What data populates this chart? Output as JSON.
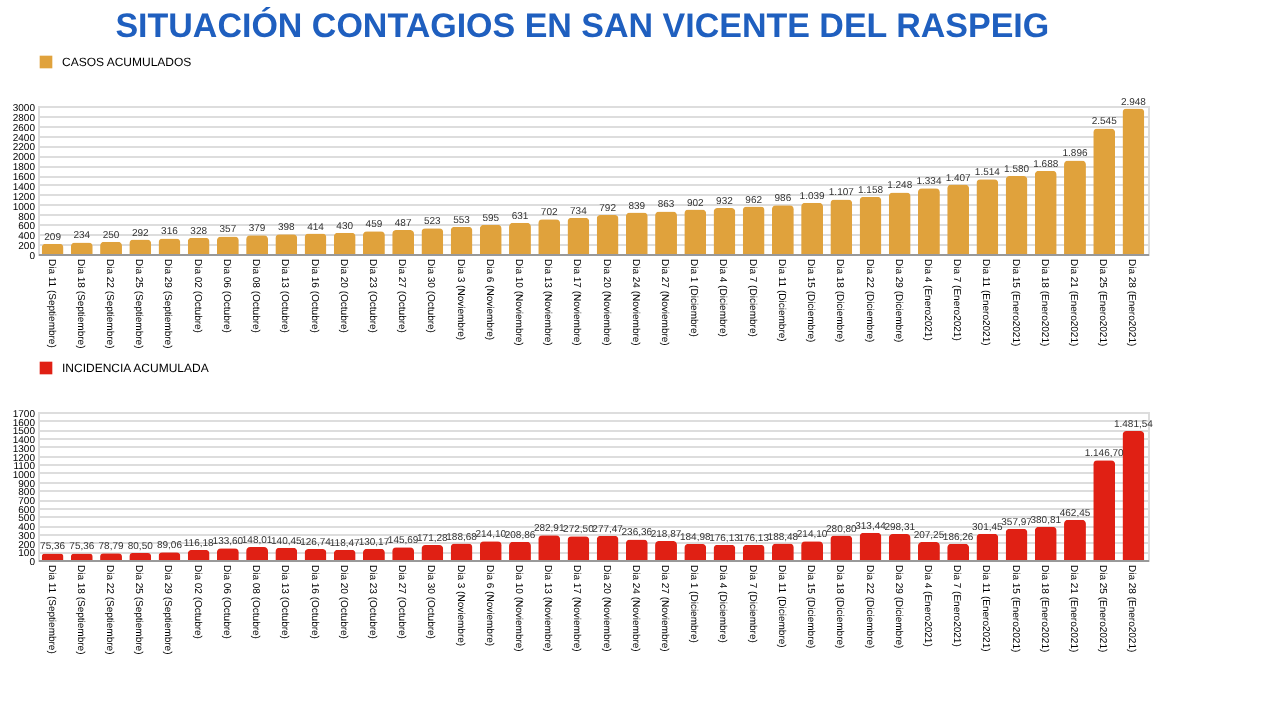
{
  "chart_data": [
    {
      "type": "bar",
      "title": "SITUACIÓN CONTAGIOS EN SAN VICENTE  DEL RASPEIG",
      "categories": [
        "Dia 11 (Septiembre)",
        "Dia 18 (Septiembre)",
        "Dia 22 (Septiembre)",
        "Dia 25 (Septiembre)",
        "Dia 29 (Septiembre)",
        "Dia 02 (Octubre)",
        "Dia 06 (Octubre)",
        "Dia 08 (Octubre)",
        "Dia 13 (Octubre)",
        "Dia 16 (Octubre)",
        "Dia 20 (Octubre)",
        "Dia 23 (Octubre)",
        "Dia 27 (Octubre)",
        "Dia 30 (Octubre)",
        "Dia 3 (Noviembre)",
        "Dia 6 (Noviembre)",
        "Dia 10 (Noviembre)",
        "Dia 13 (Noviembre)",
        "Dia 17 (Noviembre)",
        "Dia 20 (Noviembre)",
        "Dia 24 (Noviembre)",
        "Dia 27 (Noviembre)",
        "Dia 1 (Diciembre)",
        "Dia 4 (Diciembre)",
        "Dia 7 (Diciembre)",
        "Dia 11 (Diciembre)",
        "Dia 15 (Diciembre)",
        "Dia 18 (Diciembre)",
        "Dia 22 (Diciembre)",
        "Dia 29 (Diciembre)",
        "Dia 4 (Enero2021)",
        "Dia 7 (Enero2021)",
        "Dia 11 (Enero2021)",
        "Dia 15 (Enero2021)",
        "Dia 18 (Enero2021)",
        "Dia 21 (Enero2021)",
        "Dia 25 (Enero2021)",
        "Dia 28 (Enero2021)"
      ],
      "series": [
        {
          "name": "CASOS ACUMULADOS",
          "color": "#e0a23c",
          "values": [
            209,
            234,
            250,
            292,
            316,
            328,
            357,
            379,
            398,
            414,
            430,
            459,
            487,
            523,
            553,
            595,
            631,
            702,
            734,
            792,
            839,
            863,
            902,
            932,
            962,
            986,
            1039,
            1107,
            1158,
            1248,
            1334,
            1407,
            1514,
            1580,
            1688,
            1896,
            2545,
            2948
          ],
          "value_labels": [
            "209",
            "234",
            "250",
            "292",
            "316",
            "328",
            "357",
            "379",
            "398",
            "414",
            "430",
            "459",
            "487",
            "523",
            "553",
            "595",
            "631",
            "702",
            "734",
            "792",
            "839",
            "863",
            "902",
            "932",
            "962",
            "986",
            "1.039",
            "1.107",
            "1.158",
            "1.248",
            "1.334",
            "1.407",
            "1.514",
            "1.580",
            "1.688",
            "1.896",
            "2.545",
            "2.948"
          ]
        }
      ],
      "ylim": [
        0,
        3000
      ],
      "yticks": [
        0,
        200,
        400,
        600,
        800,
        1000,
        1200,
        1400,
        1600,
        1800,
        2000,
        2200,
        2400,
        2600,
        2800,
        3000
      ],
      "grid": "y",
      "legend": "top"
    },
    {
      "type": "bar",
      "categories": [
        "Dia 11 (Septiembre)",
        "Dia 18 (Septiembre)",
        "Dia 22 (Septiembre)",
        "Dia 25 (Septiembre)",
        "Dia 29 (Septiembre)",
        "Dia 02 (Octubre)",
        "Dia 06 (Octubre)",
        "Dia 08 (Octubre)",
        "Dia 13 (Octubre)",
        "Dia 16 (Octubre)",
        "Dia 20 (Octubre)",
        "Dia 23 (Octubre)",
        "Dia 27 (Octubre)",
        "Dia 30 (Octubre)",
        "Dia 3 (Noviembre)",
        "Dia 6 (Noviembre)",
        "Dia 10 (Noviembre)",
        "Dia 13 (Noviembre)",
        "Dia 17 (Noviembre)",
        "Dia 20 (Noviembre)",
        "Dia 24 (Noviembre)",
        "Dia 27 (Noviembre)",
        "Dia 1 (Diciembre)",
        "Dia 4 (Diciembre)",
        "Dia 7 (Diciembre)",
        "Dia 11 (Diciembre)",
        "Dia 15 (Diciembre)",
        "Dia 18 (Diciembre)",
        "Dia 22 (Diciembre)",
        "Dia 29 (Diciembre)",
        "Dia 4 (Enero2021)",
        "Dia 7 (Enero2021)",
        "Dia 11 (Enero2021)",
        "Dia 15 (Enero2021)",
        "Dia 18 (Enero2021)",
        "Dia 21 (Enero2021)",
        "Dia 25 (Enero2021)",
        "Dia 28 (Enero2021)"
      ],
      "series": [
        {
          "name": "INCIDENCIA ACUMULADA",
          "color": "#e02014",
          "values": [
            75.36,
            75.36,
            78.79,
            80.5,
            89.06,
            116.18,
            133.6,
            148.01,
            140.45,
            126.74,
            118.47,
            130.17,
            145.69,
            171.28,
            188.68,
            214.1,
            208.86,
            282.91,
            272.5,
            277.47,
            236.36,
            218.87,
            184.98,
            176.13,
            176.13,
            188.48,
            214.1,
            280.8,
            313.44,
            298.31,
            207.25,
            186.26,
            301.45,
            357.97,
            380.81,
            462.45,
            1146.7,
            1481.54
          ],
          "value_labels": [
            "75,36",
            "75,36",
            "78,79",
            "80,50",
            "89,06",
            "116,18",
            "133,60",
            "148,01",
            "140,45",
            "126,74",
            "118,47",
            "130,17",
            "145,69",
            "171,28",
            "188,68",
            "214,10",
            "208,86",
            "282,91",
            "272,50",
            "277,47",
            "236,36",
            "218,87",
            "184,98",
            "176,13",
            "176,13",
            "188,48",
            "214,10",
            "280,80",
            "313,44",
            "298,31",
            "207,25",
            "186,26",
            "301,45",
            "357,97",
            "380,81",
            "462,45",
            "1.146,70",
            "1.481,54"
          ]
        }
      ],
      "ylim": [
        0,
        1700
      ],
      "yticks": [
        0,
        100,
        200,
        300,
        400,
        500,
        600,
        700,
        800,
        900,
        1000,
        1100,
        1200,
        1300,
        1400,
        1500,
        1600,
        1700
      ],
      "grid": "y",
      "legend": "top"
    }
  ]
}
